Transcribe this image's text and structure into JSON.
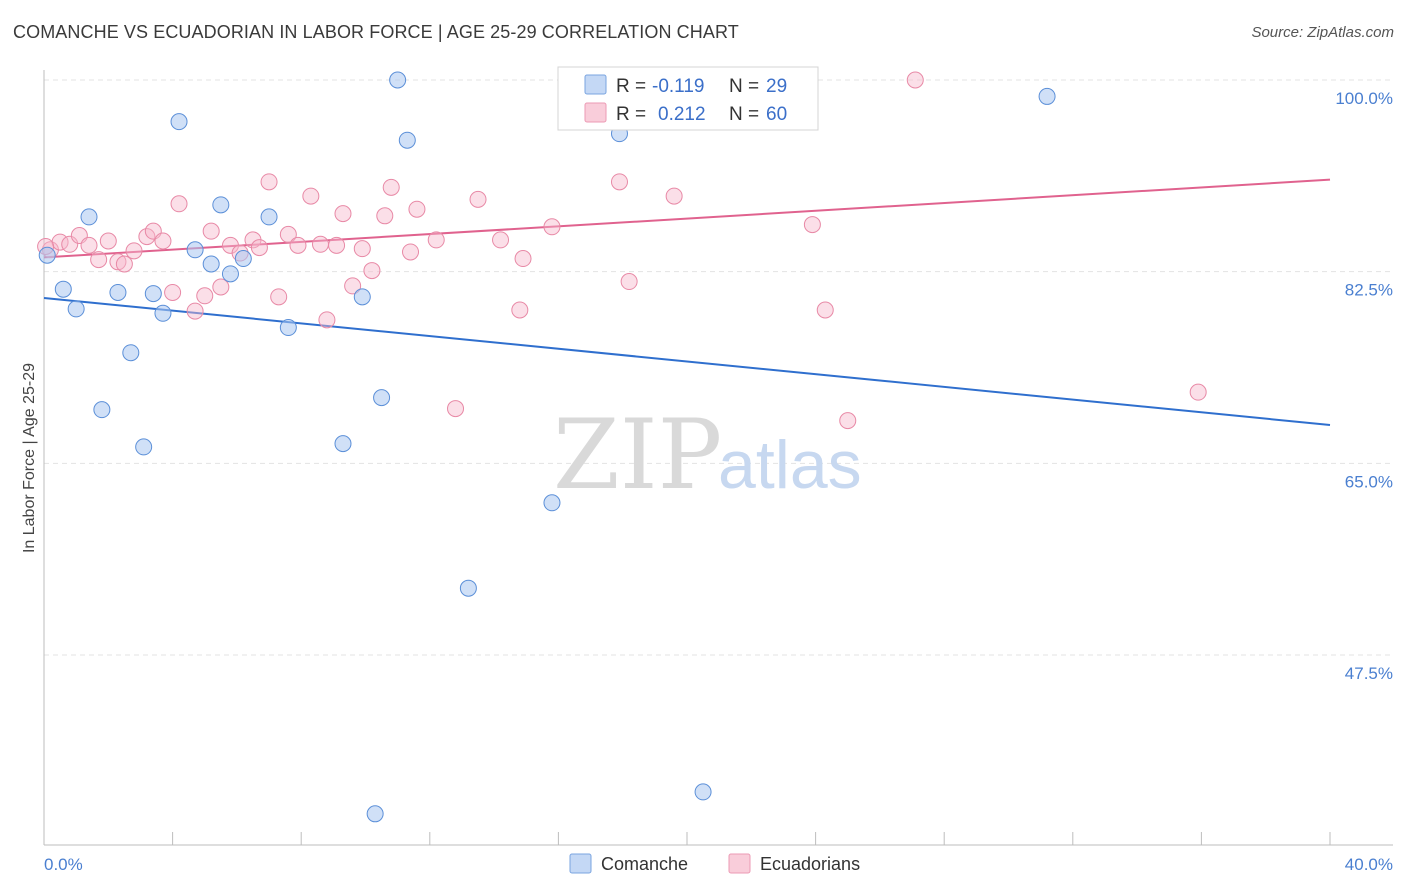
{
  "header": {
    "title": "COMANCHE VS ECUADORIAN IN LABOR FORCE | AGE 25-29 CORRELATION CHART",
    "source": "Source: ZipAtlas.com"
  },
  "watermark": {
    "zip": "ZIP",
    "atlas": "atlas"
  },
  "legend": {
    "rows": [
      {
        "r_label": "R =",
        "r_value": "-0.119",
        "n_label": "N =",
        "n_value": "29",
        "color": "#a9c6f0"
      },
      {
        "r_label": "R =",
        "r_value": "0.212",
        "n_label": "N =",
        "n_value": "60",
        "color": "#f6b8cb"
      }
    ]
  },
  "chart_data": {
    "type": "scatter",
    "title": "COMANCHE VS ECUADORIAN IN LABOR FORCE | AGE 25-29 CORRELATION CHART",
    "xlabel": "",
    "ylabel": "In Labor Force | Age 25-29",
    "xlim": [
      0,
      40
    ],
    "ylim": [
      31.5,
      102
    ],
    "x_tick_labels": [
      "0.0%",
      "40.0%"
    ],
    "y_ticks": [
      100,
      82.5,
      65,
      47.5
    ],
    "y_tick_labels": [
      "100.0%",
      "82.5%",
      "65.0%",
      "47.5%"
    ],
    "grid": true,
    "series": [
      {
        "name": "Comanche",
        "color": "#a9c6f0",
        "edge": "#5b8fd8",
        "line_color": "#2f6fce",
        "trend": {
          "x": [
            0,
            40
          ],
          "y": [
            80.1,
            68.5
          ]
        },
        "points": [
          [
            0.1,
            84.0
          ],
          [
            0.6,
            80.9
          ],
          [
            1.0,
            79.1
          ],
          [
            1.4,
            87.5
          ],
          [
            1.8,
            69.9
          ],
          [
            2.3,
            80.6
          ],
          [
            2.7,
            75.1
          ],
          [
            3.1,
            66.5
          ],
          [
            3.4,
            80.5
          ],
          [
            3.7,
            78.7
          ],
          [
            4.2,
            96.2
          ],
          [
            4.7,
            84.5
          ],
          [
            5.2,
            83.2
          ],
          [
            5.5,
            88.6
          ],
          [
            5.8,
            82.3
          ],
          [
            6.2,
            83.7
          ],
          [
            7.0,
            87.5
          ],
          [
            7.6,
            77.4
          ],
          [
            9.3,
            66.8
          ],
          [
            9.9,
            80.2
          ],
          [
            10.3,
            33.0
          ],
          [
            10.5,
            71.0
          ],
          [
            11.0,
            100.0
          ],
          [
            11.3,
            94.5
          ],
          [
            13.2,
            53.6
          ],
          [
            15.8,
            61.4
          ],
          [
            17.9,
            95.1
          ],
          [
            20.5,
            35.0
          ],
          [
            31.2,
            98.5
          ]
        ]
      },
      {
        "name": "Ecuadorians",
        "color": "#f6b8cb",
        "edge": "#e889a6",
        "line_color": "#e0628e",
        "trend": {
          "x": [
            0,
            40
          ],
          "y": [
            83.8,
            90.9
          ]
        },
        "points": [
          [
            0.2,
            84.5
          ],
          [
            0.5,
            85.2
          ],
          [
            0.8,
            85.0
          ],
          [
            1.1,
            85.8
          ],
          [
            1.4,
            84.9
          ],
          [
            1.7,
            83.6
          ],
          [
            2.0,
            85.3
          ],
          [
            2.3,
            83.4
          ],
          [
            2.5,
            83.2
          ],
          [
            2.8,
            84.4
          ],
          [
            3.2,
            85.7
          ],
          [
            3.4,
            86.2
          ],
          [
            3.7,
            85.3
          ],
          [
            4.0,
            80.6
          ],
          [
            4.2,
            88.7
          ],
          [
            4.7,
            78.9
          ],
          [
            5.0,
            80.3
          ],
          [
            5.2,
            86.2
          ],
          [
            5.5,
            81.1
          ],
          [
            5.8,
            84.9
          ],
          [
            6.1,
            84.2
          ],
          [
            6.5,
            85.4
          ],
          [
            6.7,
            84.7
          ],
          [
            7.0,
            90.7
          ],
          [
            7.3,
            80.2
          ],
          [
            7.6,
            85.9
          ],
          [
            7.9,
            84.9
          ],
          [
            8.3,
            89.4
          ],
          [
            8.6,
            85.0
          ],
          [
            8.8,
            78.1
          ],
          [
            9.1,
            84.9
          ],
          [
            9.3,
            87.8
          ],
          [
            9.6,
            81.2
          ],
          [
            9.9,
            84.6
          ],
          [
            10.2,
            82.6
          ],
          [
            10.6,
            87.6
          ],
          [
            10.8,
            90.2
          ],
          [
            11.4,
            84.3
          ],
          [
            11.6,
            88.2
          ],
          [
            12.2,
            85.4
          ],
          [
            12.8,
            70.0
          ],
          [
            13.5,
            89.1
          ],
          [
            14.2,
            85.4
          ],
          [
            14.8,
            79.0
          ],
          [
            14.9,
            83.7
          ],
          [
            15.8,
            86.6
          ],
          [
            17.9,
            90.7
          ],
          [
            18.2,
            81.6
          ],
          [
            18.6,
            100.0
          ],
          [
            19.6,
            89.4
          ],
          [
            21.8,
            100.0
          ],
          [
            22.2,
            98.0
          ],
          [
            22.6,
            100.0
          ],
          [
            23.9,
            86.8
          ],
          [
            24.3,
            79.0
          ],
          [
            25.0,
            68.9
          ],
          [
            27.1,
            100.0
          ],
          [
            35.9,
            71.5
          ],
          [
            0.05,
            84.8
          ],
          [
            20.6,
            100.0
          ]
        ]
      }
    ]
  }
}
